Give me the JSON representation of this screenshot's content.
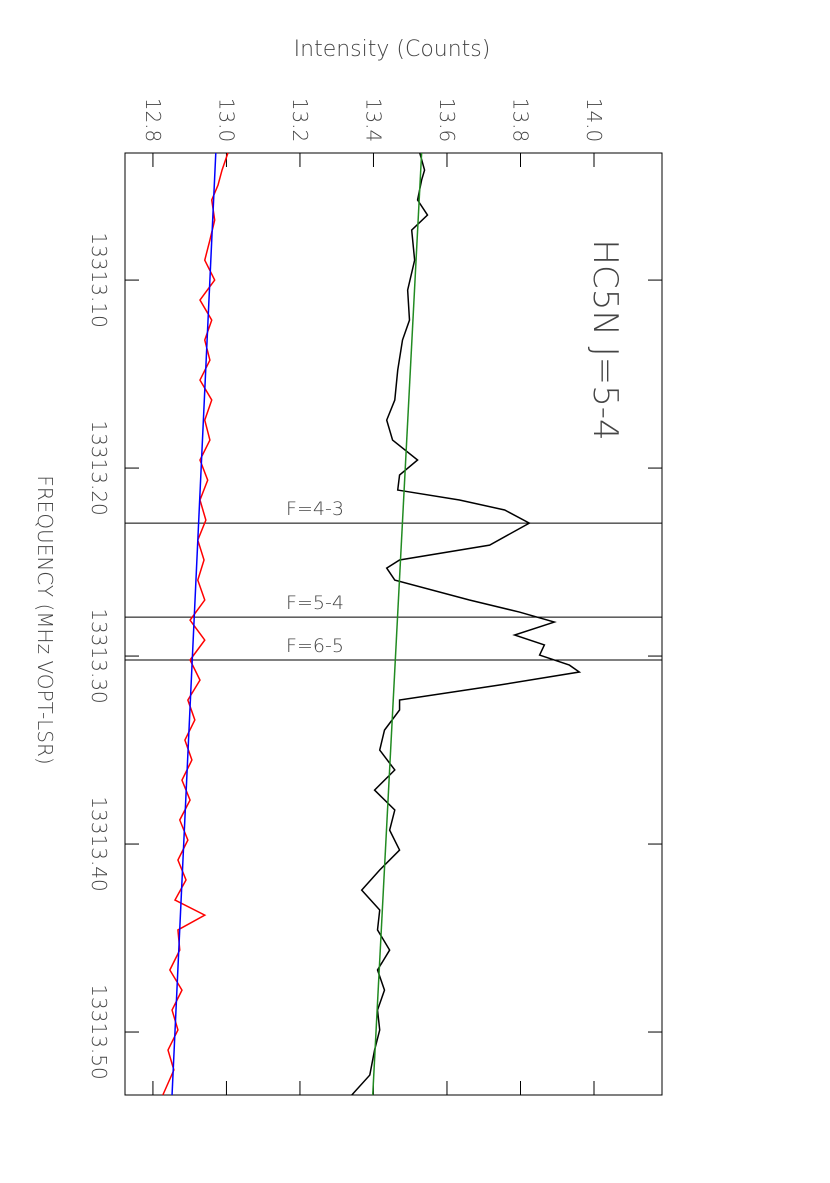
{
  "chart_data": {
    "type": "line",
    "title": "HC5N J=5-4",
    "xlabel": "FREQUENCY (MHz VOPT-LSR)",
    "ylabel": "Intensity (Counts)",
    "xlim": [
      13313.0324,
      13313.5335
    ],
    "ylim": [
      12.724,
      14.185
    ],
    "xticks": [
      {
        "value": 13313.1,
        "label": "13313.10"
      },
      {
        "value": 13313.2,
        "label": "13313.20"
      },
      {
        "value": 13313.3,
        "label": "13313.30"
      },
      {
        "value": 13313.4,
        "label": "13313.40"
      },
      {
        "value": 13313.5,
        "label": "13313.50"
      }
    ],
    "yticks": [
      12.8,
      {
        "value": 13.0,
        "label": "13.0"
      },
      13.2,
      13.4,
      13.6,
      13.8,
      {
        "value": 14.0,
        "label": "14.0"
      }
    ],
    "series": [
      {
        "color": "#000000",
        "x": [
          13313.0324,
          13313.0415,
          13313.0468,
          13313.0574,
          13313.0654,
          13313.0734,
          13313.0894,
          13313.1053,
          13313.1213,
          13313.1319,
          13313.1479,
          13313.1638,
          13313.1745,
          13313.1851,
          13313.1957,
          13313.2037,
          13313.2117,
          13313.217,
          13313.2223,
          13313.2293,
          13313.241,
          13313.2489,
          13313.2532,
          13313.2596,
          13313.2702,
          13313.2766,
          13313.2819,
          13313.2888,
          13313.2941,
          13313.2995,
          13313.3048,
          13313.3085,
          13313.3154,
          13313.3234,
          13313.3287,
          13313.3394,
          13313.35,
          13313.3606,
          13313.3713,
          13313.3819,
          13313.3926,
          13313.4032,
          13313.4138,
          13313.4245,
          13313.4351,
          13313.4457,
          13313.4564,
          13313.467,
          13313.4777,
          13313.4883,
          13313.4989,
          13313.5096,
          13313.5229,
          13313.5335
        ],
        "values": [
          13.526,
          13.539,
          13.531,
          13.52,
          13.547,
          13.504,
          13.512,
          13.493,
          13.498,
          13.479,
          13.466,
          13.458,
          13.436,
          13.452,
          13.52,
          13.471,
          13.466,
          13.634,
          13.757,
          13.824,
          13.716,
          13.471,
          13.436,
          13.458,
          13.661,
          13.797,
          13.892,
          13.784,
          13.865,
          13.852,
          13.933,
          13.96,
          13.743,
          13.471,
          13.471,
          13.43,
          13.417,
          13.458,
          13.403,
          13.458,
          13.444,
          13.471,
          13.417,
          13.368,
          13.417,
          13.411,
          13.444,
          13.411,
          13.43,
          13.411,
          13.417,
          13.403,
          13.39,
          13.341
        ]
      },
      {
        "color": "#228b22",
        "x": [
          13313.0324,
          13313.5335
        ],
        "values": [
          13.531,
          13.398
        ]
      },
      {
        "color": "#ff0000",
        "x": [
          13313.0324,
          13313.0415,
          13313.0495,
          13313.0574,
          13313.0681,
          13313.0787,
          13313.0894,
          13313.1,
          13313.1106,
          13313.1213,
          13313.1319,
          13313.1426,
          13313.1532,
          13313.1638,
          13313.1745,
          13313.1851,
          13313.1957,
          13313.2064,
          13313.217,
          13313.2277,
          13313.2383,
          13313.2489,
          13313.2596,
          13313.2702,
          13313.2809,
          13313.2915,
          13313.3021,
          13313.3128,
          13313.3234,
          13313.334,
          13313.3447,
          13313.3553,
          13313.366,
          13313.3766,
          13313.3872,
          13313.3979,
          13313.4085,
          13313.4191,
          13313.4298,
          13313.4378,
          13313.4457,
          13313.4564,
          13313.467,
          13313.4777,
          13313.4883,
          13313.4989,
          13313.5096,
          13313.5202,
          13313.5335
        ],
        "values": [
          13.004,
          12.988,
          12.977,
          12.96,
          12.968,
          12.955,
          12.941,
          12.968,
          12.928,
          12.96,
          12.941,
          12.955,
          12.928,
          12.96,
          12.941,
          12.955,
          12.928,
          12.949,
          12.928,
          12.944,
          12.922,
          12.939,
          12.922,
          12.941,
          12.901,
          12.941,
          12.901,
          12.928,
          12.895,
          12.914,
          12.887,
          12.906,
          12.879,
          12.901,
          12.873,
          12.895,
          12.868,
          12.89,
          12.86,
          12.941,
          12.868,
          12.873,
          12.846,
          12.879,
          12.852,
          12.868,
          12.841,
          12.857,
          12.827
        ]
      },
      {
        "color": "#0000ff",
        "x": [
          13313.0324,
          13313.5335
        ],
        "values": [
          12.971,
          12.852
        ]
      }
    ],
    "lines": [
      {
        "x": 13313.2293,
        "label": "F=4-3"
      },
      {
        "x": 13313.2793,
        "label": "F=5-4"
      },
      {
        "x": 13313.3021,
        "label": "F=6-5"
      }
    ]
  }
}
